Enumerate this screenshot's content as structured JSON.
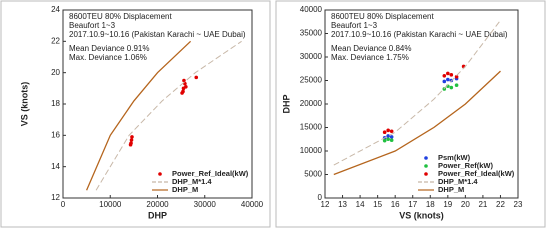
{
  "chart_data": [
    {
      "type": "line",
      "annotations": [
        "8600TEU 80% Displacement",
        "Beaufort 1~3",
        "2017.10.9~10.16 (Pakistan Karachi ~ UAE Dubai)",
        "Mean Deviance 0.91%",
        "Max. Deviance 1.06%"
      ],
      "x_label": "DHP",
      "y_label": "VS (knots)",
      "xlim": [
        0,
        40000
      ],
      "xticks": [
        0,
        10000,
        20000,
        30000,
        40000
      ],
      "ylim": [
        12,
        24
      ],
      "yticks": [
        12,
        14,
        16,
        18,
        20,
        22,
        24
      ],
      "series": [
        {
          "name": "Power_Ref_Ideal(kW)",
          "color": "#e00000",
          "style": "markers",
          "x": [
            14300,
            14500,
            14600,
            14400,
            25200,
            25500,
            25800,
            25400,
            25600,
            26000,
            28200
          ],
          "values": [
            15.4,
            15.7,
            15.9,
            15.5,
            18.7,
            19.0,
            19.3,
            18.8,
            19.5,
            19.1,
            19.7
          ]
        },
        {
          "name": "DHP_M*1.4",
          "color": "#c8b8a8",
          "style": "dashed",
          "x": [
            7000,
            14000,
            21000,
            28000,
            37800
          ],
          "values": [
            12.5,
            16,
            18.2,
            20,
            22
          ]
        },
        {
          "name": "DHP_M",
          "color": "#b5651d",
          "style": "solid",
          "x": [
            5000,
            10000,
            15000,
            20000,
            27000
          ],
          "values": [
            12.5,
            16,
            18.2,
            20,
            22
          ]
        }
      ]
    },
    {
      "type": "line",
      "annotations": [
        "8600TEU 80% Displacement",
        "Beaufort 1~3",
        "2017.10.9~10.16 (Pakistan Karachi ~ UAE Dubai)",
        "Mean Deviance 0.84%",
        "Max. Deviance 1.75%"
      ],
      "x_label": "VS (knots)",
      "y_label": "DHP",
      "xlim": [
        12,
        23
      ],
      "xticks": [
        12,
        13,
        14,
        15,
        16,
        17,
        18,
        19,
        20,
        21,
        22,
        23
      ],
      "ylim": [
        0,
        40000
      ],
      "yticks": [
        0,
        5000,
        10000,
        15000,
        20000,
        25000,
        30000,
        35000,
        40000
      ],
      "series": [
        {
          "name": "Psm(kW)",
          "color": "#2040e0",
          "style": "markers",
          "x": [
            15.4,
            15.6,
            15.8,
            18.8,
            19.0,
            19.2,
            19.5
          ],
          "values": [
            12800,
            13200,
            13000,
            24800,
            25200,
            25000,
            25400
          ]
        },
        {
          "name": "Power_Ref(kW)",
          "color": "#20c040",
          "style": "markers",
          "x": [
            15.4,
            15.6,
            15.8,
            18.8,
            19.0,
            19.2,
            19.5
          ],
          "values": [
            12200,
            12500,
            12300,
            23200,
            23800,
            23500,
            24000
          ]
        },
        {
          "name": "Power_Ref_Ideal(kW)",
          "color": "#e00000",
          "style": "markers",
          "x": [
            15.4,
            15.6,
            15.8,
            18.8,
            19.0,
            19.2,
            19.5,
            19.9
          ],
          "values": [
            14000,
            14400,
            14200,
            26000,
            26500,
            26200,
            25800,
            28000
          ]
        },
        {
          "name": "DHP_M*1.4",
          "color": "#c8b8a8",
          "style": "dashed",
          "x": [
            12.5,
            16,
            18.2,
            20,
            22
          ],
          "values": [
            7000,
            14000,
            21000,
            28000,
            37800
          ]
        },
        {
          "name": "DHP_M",
          "color": "#b5651d",
          "style": "solid",
          "x": [
            12.5,
            16,
            18.2,
            20,
            22
          ],
          "values": [
            5000,
            10000,
            15000,
            20000,
            27000
          ]
        }
      ]
    }
  ]
}
